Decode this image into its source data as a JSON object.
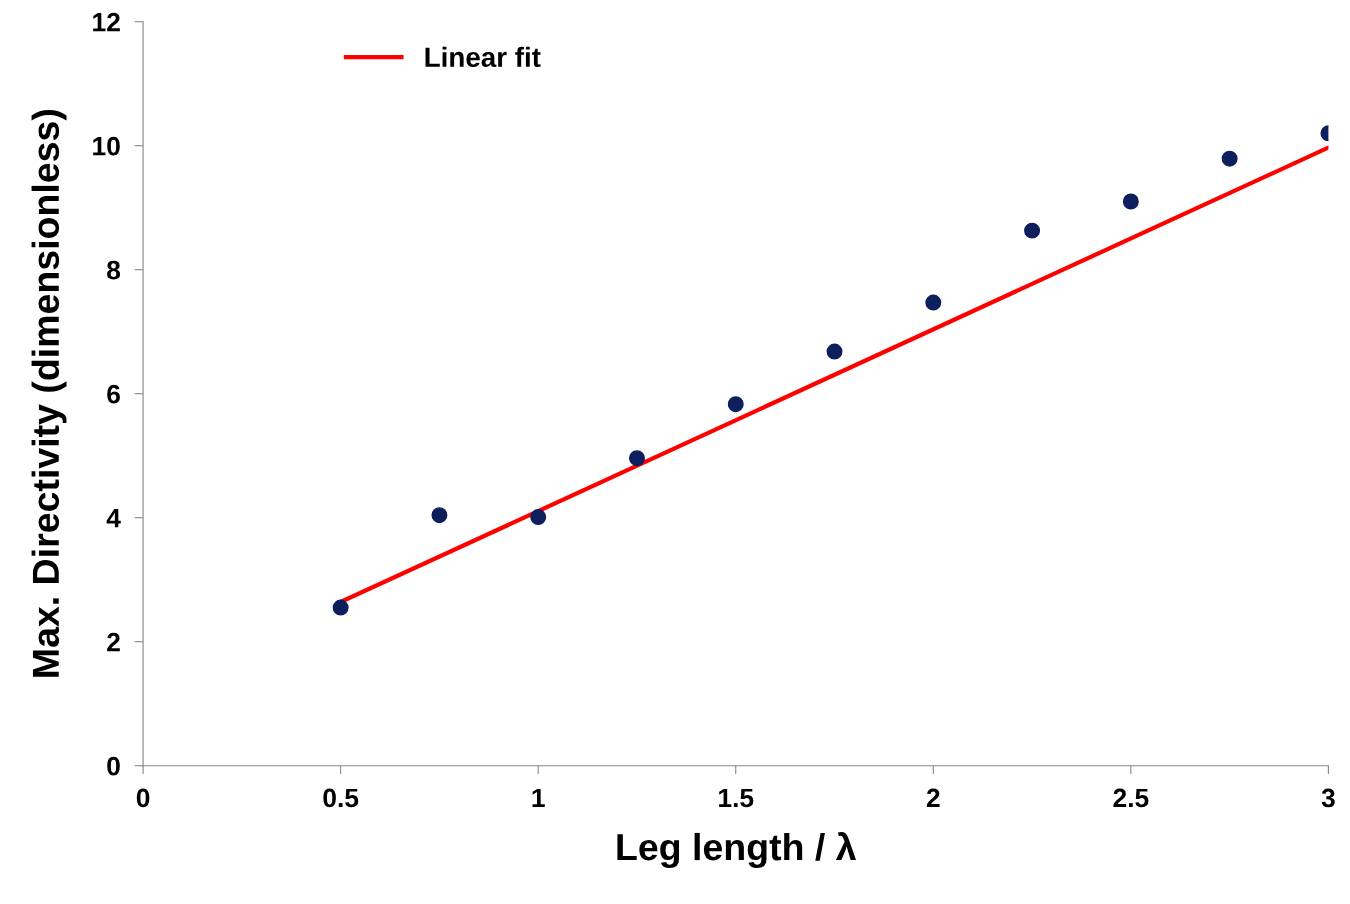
{
  "chart_data": {
    "type": "scatter",
    "xlabel": "Leg length / λ",
    "ylabel": "Max. Directivity (dimensionless)",
    "xlim": [
      0,
      3
    ],
    "xticks": [
      0,
      0.5,
      1,
      1.5,
      2,
      2.5,
      3
    ],
    "ylim": [
      0,
      12
    ],
    "yticks": [
      0,
      2,
      4,
      6,
      8,
      10,
      12
    ],
    "grid": false,
    "legend": "top left",
    "marker": "circle",
    "series": [
      {
        "name": "Linear fit",
        "type": "line",
        "marker": "none",
        "color": "#ff0000",
        "x": [
          0.5,
          3
        ],
        "values": [
          2.64,
          9.97
        ]
      },
      {
        "color": "#0d1f5c",
        "x": [
          0.5,
          0.75,
          1,
          1.25,
          1.5,
          1.75,
          2,
          2.25,
          2.5,
          2.75,
          3
        ],
        "values": [
          2.55,
          4.04,
          4.01,
          4.96,
          5.83,
          6.68,
          7.47,
          8.63,
          9.1,
          9.79,
          10.2
        ]
      }
    ]
  }
}
